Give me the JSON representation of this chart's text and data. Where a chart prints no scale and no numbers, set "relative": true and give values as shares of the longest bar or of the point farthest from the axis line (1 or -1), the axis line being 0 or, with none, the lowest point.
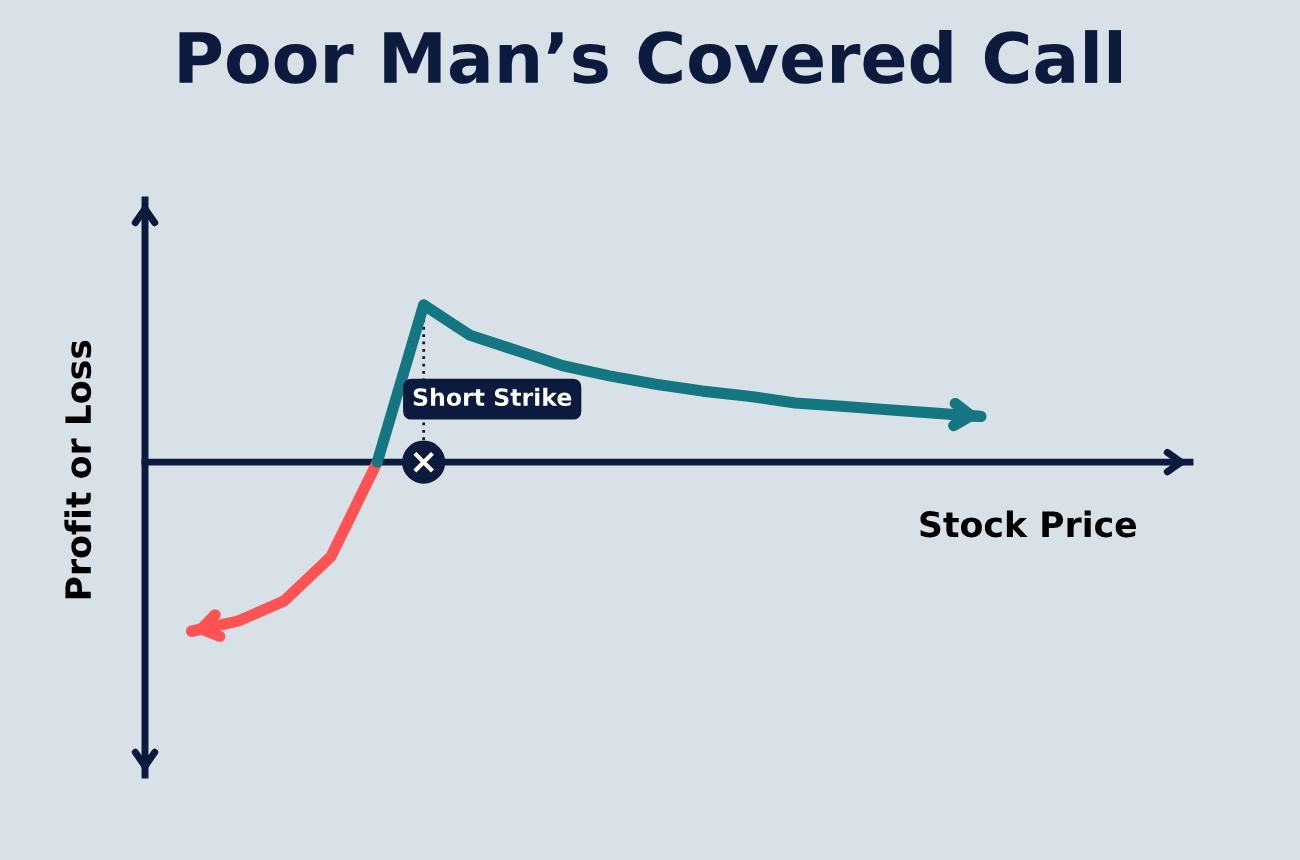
{
  "chart_data": {
    "type": "line",
    "title": "Poor Man’s Covered Call",
    "xlabel": "Stock Price",
    "ylabel": "Profit or Loss",
    "relative": true,
    "line_style": "solid",
    "categories": [
      null,
      null,
      null,
      null,
      null,
      null,
      null,
      null,
      null,
      null,
      null,
      null,
      null,
      null,
      null,
      null,
      null,
      null
    ],
    "series": [
      {
        "color": "#ff5252",
        "values": [
          -1,
          -0.94,
          -0.82,
          -0.56,
          0,
          null,
          null,
          null,
          null,
          null,
          null,
          null,
          null,
          null,
          null,
          null,
          null,
          null
        ]
      },
      {
        "color": "#137680",
        "values": [
          null,
          null,
          null,
          null,
          0,
          0.93,
          0.75,
          0.66,
          0.57,
          0.51,
          0.46,
          0.42,
          0.39,
          0.35,
          0.33,
          0.31,
          0.29,
          0.27
        ]
      }
    ],
    "annotations": [
      "Short Strike"
    ]
  }
}
